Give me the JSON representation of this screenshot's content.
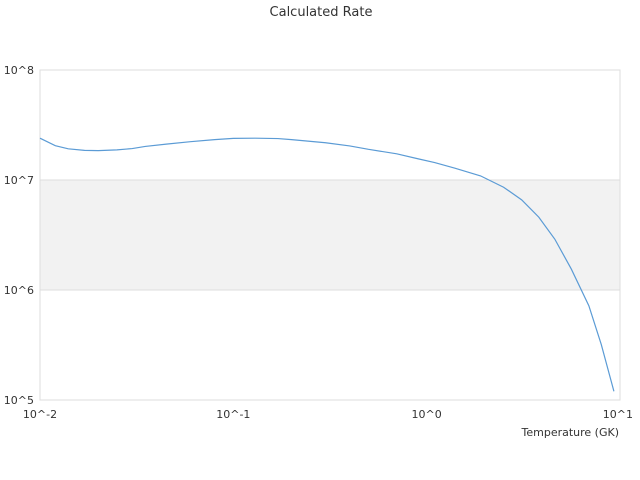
{
  "chart_data": {
    "type": "line",
    "title": "Calculated Rate",
    "xlabel": "Temperature (GK)",
    "ylabel": "",
    "x_scale": "log",
    "y_scale": "log",
    "xlim": [
      0.01,
      10
    ],
    "ylim": [
      100000,
      100000000
    ],
    "x_ticks": [
      {
        "value": 0.01,
        "label": "10^-2"
      },
      {
        "value": 0.1,
        "label": "10^-1"
      },
      {
        "value": 1,
        "label": "10^0"
      },
      {
        "value": 10,
        "label": "10^1"
      }
    ],
    "y_ticks": [
      {
        "value": 100000,
        "label": "10^5"
      },
      {
        "value": 1000000,
        "label": "10^6"
      },
      {
        "value": 10000000,
        "label": "10^7"
      },
      {
        "value": 100000000,
        "label": "10^8"
      }
    ],
    "grid": true,
    "band_color": "#f2f2f2",
    "series": [
      {
        "color": "#5b9bd5",
        "x": [
          0.01,
          0.012,
          0.014,
          0.017,
          0.02,
          0.025,
          0.03,
          0.035,
          0.045,
          0.06,
          0.08,
          0.1,
          0.13,
          0.17,
          0.2,
          0.3,
          0.4,
          0.5,
          0.7,
          0.9,
          1.1,
          1.4,
          1.9,
          2.5,
          3.1,
          3.8,
          4.6,
          5.6,
          6.9,
          8.0,
          9.3
        ],
        "y": [
          24000000,
          20500000,
          19200000,
          18600000,
          18500000,
          18800000,
          19300000,
          20200000,
          21200000,
          22300000,
          23300000,
          23900000,
          24000000,
          23800000,
          23300000,
          21800000,
          20400000,
          19000000,
          17300000,
          15600000,
          14400000,
          12800000,
          10900000,
          8600000,
          6600000,
          4600000,
          2900000,
          1550000,
          720000,
          320000,
          120000
        ]
      }
    ]
  }
}
